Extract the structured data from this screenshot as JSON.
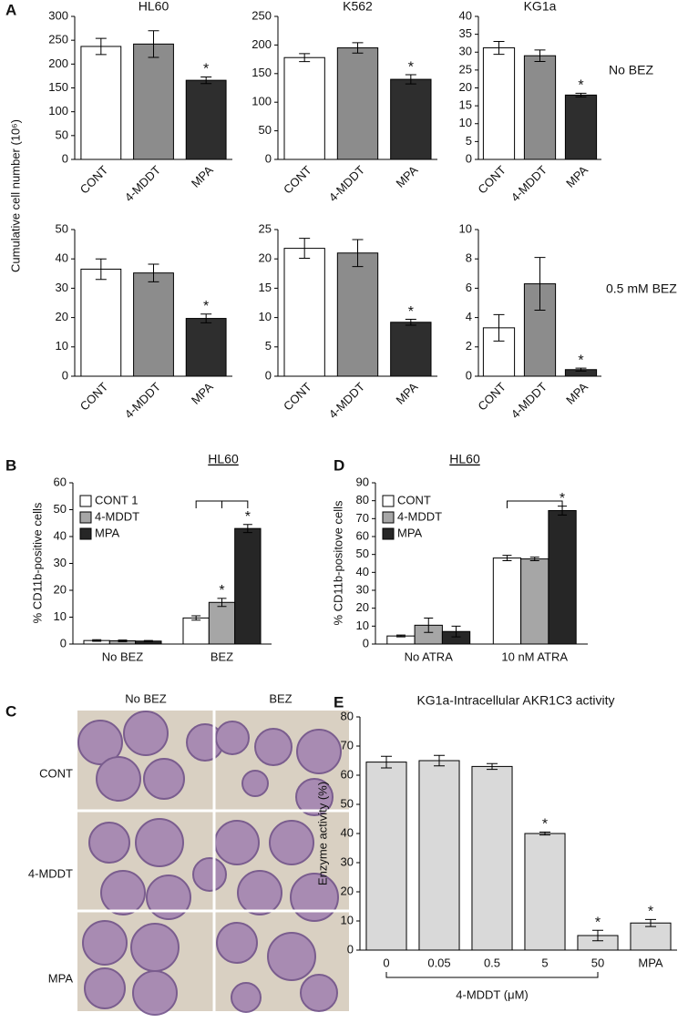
{
  "micrograph": {
    "panel": "C",
    "columns": [
      "No BEZ",
      "BEZ"
    ],
    "rows": [
      "CONT",
      "4-MDDT",
      "MPA"
    ]
  },
  "chart_data": [
    {
      "type": "bar",
      "panel": "A",
      "title": "HL60",
      "ylabel": "Cumulative cell number (10⁶)",
      "categories": [
        "CONT",
        "4-MDDT",
        "MPA"
      ],
      "values": [
        237,
        242,
        166
      ],
      "errors": [
        17,
        28,
        7
      ],
      "colors": [
        "#ffffff",
        "#8c8c8c",
        "#2e2e2e"
      ],
      "significance": [
        null,
        null,
        "*"
      ],
      "ylim": [
        0,
        300
      ],
      "yticks": [
        0,
        50,
        100,
        150,
        200,
        250,
        300
      ]
    },
    {
      "type": "bar",
      "title": "K562",
      "categories": [
        "CONT",
        "4-MDDT",
        "MPA"
      ],
      "values": [
        178,
        195,
        140
      ],
      "errors": [
        7,
        9,
        8
      ],
      "colors": [
        "#ffffff",
        "#8c8c8c",
        "#2e2e2e"
      ],
      "significance": [
        null,
        null,
        "*"
      ],
      "ylim": [
        0,
        250
      ],
      "yticks": [
        0,
        50,
        100,
        150,
        200,
        250
      ]
    },
    {
      "type": "bar",
      "title": "KG1a",
      "side_label": "No BEZ",
      "categories": [
        "CONT",
        "4-MDDT",
        "MPA"
      ],
      "values": [
        31.2,
        29,
        18
      ],
      "errors": [
        1.8,
        1.6,
        0.5
      ],
      "colors": [
        "#ffffff",
        "#8c8c8c",
        "#2e2e2e"
      ],
      "significance": [
        null,
        null,
        "*"
      ],
      "ylim": [
        0,
        40
      ],
      "yticks": [
        0,
        5,
        10,
        15,
        20,
        25,
        30,
        35,
        40
      ]
    },
    {
      "type": "bar",
      "categories": [
        "CONT",
        "4-MDDT",
        "MPA"
      ],
      "values": [
        36.5,
        35.2,
        19.7
      ],
      "errors": [
        3.5,
        3,
        1.5
      ],
      "colors": [
        "#ffffff",
        "#8c8c8c",
        "#2e2e2e"
      ],
      "significance": [
        null,
        null,
        "*"
      ],
      "ylim": [
        0,
        50
      ],
      "yticks": [
        0,
        10,
        20,
        30,
        40,
        50
      ]
    },
    {
      "type": "bar",
      "categories": [
        "CONT",
        "4-MDDT",
        "MPA"
      ],
      "values": [
        21.8,
        21,
        9.2
      ],
      "errors": [
        1.7,
        2.3,
        0.5
      ],
      "colors": [
        "#ffffff",
        "#8c8c8c",
        "#2e2e2e"
      ],
      "significance": [
        null,
        null,
        "*"
      ],
      "ylim": [
        0,
        25
      ],
      "yticks": [
        0,
        5,
        10,
        15,
        20,
        25
      ]
    },
    {
      "type": "bar",
      "side_label": "0.5 mM BEZ",
      "categories": [
        "CONT",
        "4-MDDT",
        "MPA"
      ],
      "values": [
        3.3,
        6.3,
        0.45
      ],
      "errors": [
        0.9,
        1.8,
        0.1
      ],
      "colors": [
        "#ffffff",
        "#8c8c8c",
        "#2e2e2e"
      ],
      "significance": [
        null,
        null,
        "*"
      ],
      "ylim": [
        0,
        10
      ],
      "yticks": [
        0,
        2,
        4,
        6,
        8,
        10
      ]
    },
    {
      "type": "grouped_bar",
      "panel": "B",
      "title": "HL60",
      "ylabel": "% CD11b-positive cells",
      "categories": [
        "No BEZ",
        "BEZ"
      ],
      "series": [
        {
          "name": "CONT 1",
          "color": "#ffffff",
          "values": [
            1.3,
            9.7
          ],
          "errors": [
            0.3,
            0.8
          ],
          "significance": [
            null,
            null
          ]
        },
        {
          "name": "4-MDDT",
          "color": "#a6a6a6",
          "values": [
            1.2,
            15.5
          ],
          "errors": [
            0.3,
            1.5
          ],
          "significance": [
            null,
            "*"
          ]
        },
        {
          "name": "MPA",
          "color": "#262626",
          "values": [
            1.1,
            43
          ],
          "errors": [
            0.2,
            1.5
          ],
          "significance": [
            null,
            "*"
          ]
        }
      ],
      "ylim": [
        0,
        60
      ],
      "yticks": [
        0,
        10,
        20,
        30,
        40,
        50,
        60
      ]
    },
    {
      "type": "grouped_bar",
      "panel": "D",
      "title": "HL60",
      "ylabel": "% CD11b-positove cells",
      "categories": [
        "No ATRA",
        "10 nM ATRA"
      ],
      "series": [
        {
          "name": "CONT",
          "color": "#ffffff",
          "values": [
            4.5,
            48
          ],
          "errors": [
            0.5,
            1.5
          ],
          "significance": [
            null,
            null
          ]
        },
        {
          "name": "4-MDDT",
          "color": "#a6a6a6",
          "values": [
            10.5,
            47.5
          ],
          "errors": [
            4,
            1
          ],
          "significance": [
            null,
            null
          ]
        },
        {
          "name": "MPA",
          "color": "#262626",
          "values": [
            7,
            74.5
          ],
          "errors": [
            3,
            2.5
          ],
          "significance": [
            null,
            "*"
          ]
        }
      ],
      "ylim": [
        0,
        90
      ],
      "yticks": [
        0,
        10,
        20,
        30,
        40,
        50,
        60,
        70,
        80,
        90
      ]
    },
    {
      "type": "bar",
      "panel": "E",
      "title": "KG1a-Intracellular AKR1C3 activity",
      "ylabel": "Enzyme activity (%)",
      "group_label": "4-MDDT (μM)",
      "categories": [
        "0",
        "0.05",
        "0.5",
        "5",
        "50",
        "MPA"
      ],
      "values": [
        64.5,
        65,
        63,
        40,
        5,
        9.3
      ],
      "errors": [
        2,
        1.8,
        1,
        0.5,
        1.8,
        1.2
      ],
      "color": "#d9d9d9",
      "significance": [
        null,
        null,
        null,
        "*",
        "*",
        "*"
      ],
      "ylim": [
        0,
        80
      ],
      "yticks": [
        0,
        10,
        20,
        30,
        40,
        50,
        60,
        70,
        80
      ]
    }
  ]
}
